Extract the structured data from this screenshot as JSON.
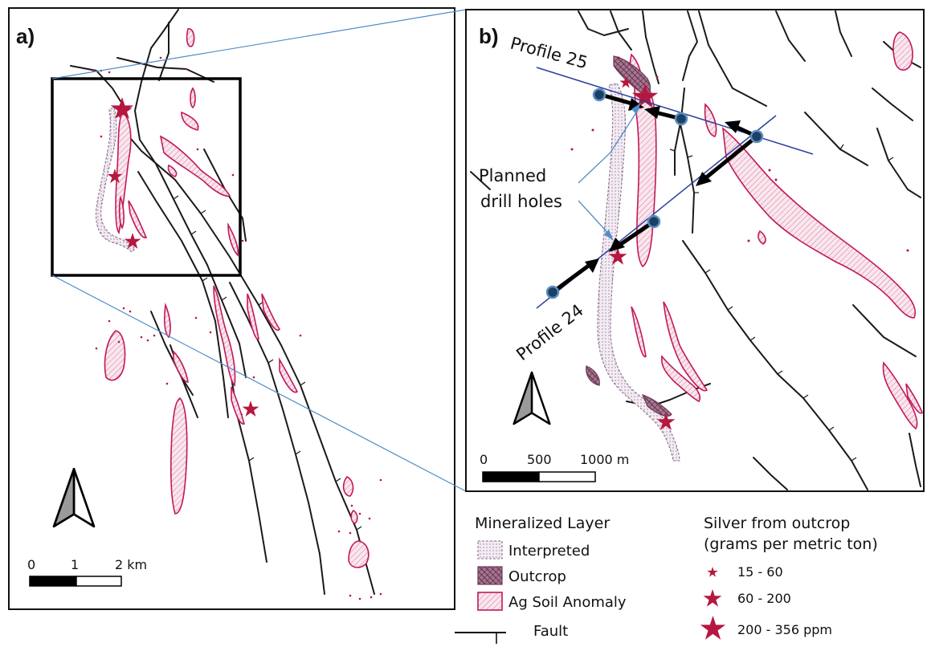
{
  "panel_a": {
    "label": "a)",
    "scale": {
      "ticks": [
        "0",
        "1",
        "2 km"
      ]
    }
  },
  "panel_b": {
    "label": "b)",
    "profile_25": "Profile 25",
    "profile_24": "Profile 24",
    "planned_line1": "Planned",
    "planned_line2": "drill holes",
    "scale": {
      "ticks": [
        "0",
        "500",
        "1000 m"
      ]
    }
  },
  "legend": {
    "layer_title": "Mineralized Layer",
    "items": [
      "Interpreted",
      "Outcrop",
      "Ag Soil Anomaly"
    ],
    "fault": "Fault",
    "silver_title_1": "Silver from outcrop",
    "silver_title_2": "(grams per metric ton)",
    "silver_classes": [
      "15 - 60",
      "60 - 200",
      "200 - 356 ppm"
    ]
  },
  "colors": {
    "anomaly": "#c2185b",
    "star": "#b5173f",
    "profile_line": "#2a3fa0",
    "drill_hole": "#1c3f66",
    "callout": "#4f8ec9"
  },
  "icons": [
    "north-arrow-icon",
    "star-icon",
    "drill-hole-icon"
  ]
}
